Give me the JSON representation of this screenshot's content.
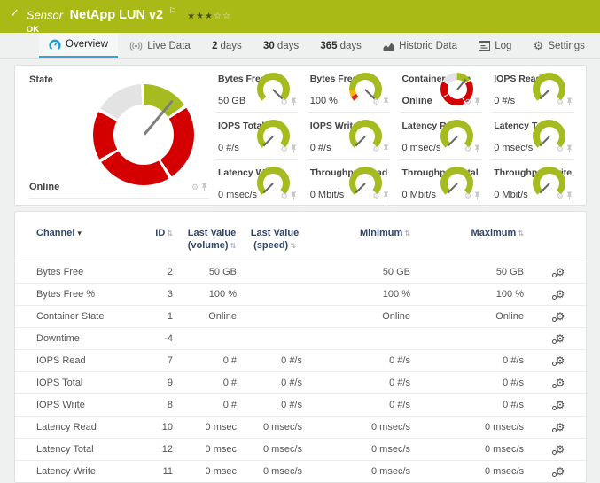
{
  "colors": {
    "banner_green": "#a9ba16",
    "gauge_green": "#a6bb20",
    "gauge_red": "#d40000",
    "gauge_warn_yellow": "#f8b800",
    "gauge_gray": "#e3e3e3",
    "active_tab_blue": "#2ba6d9",
    "table_header_navy": "#33456b"
  },
  "icons": {
    "check": "✓",
    "flag": "⚐",
    "gear": "⚙",
    "sort": "⇅",
    "sort_down": "▾"
  },
  "header": {
    "kind": "Sensor",
    "title": "NetApp LUN v2",
    "status": "OK",
    "stars_filled": "★★★",
    "stars_empty": "☆☆"
  },
  "tabs": [
    {
      "icon": "gauge-icon",
      "label": "Overview",
      "active": true
    },
    {
      "icon": "broadcast-icon",
      "label": "Live Data"
    },
    {
      "num": "2",
      "label": "days"
    },
    {
      "num": "30",
      "label": "days"
    },
    {
      "num": "365",
      "label": "days"
    },
    {
      "icon": "historic-chart-icon",
      "label": "Historic Data"
    },
    {
      "icon": "log-icon",
      "label": "Log"
    },
    {
      "icon": "gear-icon",
      "label": "Settings"
    }
  ],
  "state_gauge": {
    "title": "State",
    "value": "Online"
  },
  "mini_gauges": [
    {
      "label": "Bytes Free",
      "value": "50 GB",
      "style": "green",
      "needle": "max"
    },
    {
      "label": "Bytes Free %",
      "value": "100 %",
      "style": "limits",
      "needle": "max"
    },
    {
      "label": "Container State",
      "value": "Online",
      "style": "state",
      "needle": "state",
      "emph": true
    },
    {
      "label": "IOPS Read",
      "value": "0 #/s",
      "style": "green",
      "needle": "min"
    },
    {
      "label": "IOPS Total",
      "value": "0 #/s",
      "style": "green",
      "needle": "min"
    },
    {
      "label": "IOPS Write",
      "value": "0 #/s",
      "style": "green",
      "needle": "min"
    },
    {
      "label": "Latency Read",
      "value": "0 msec/s",
      "style": "green",
      "needle": "min"
    },
    {
      "label": "Latency Total",
      "value": "0 msec/s",
      "style": "green",
      "needle": "min"
    },
    {
      "label": "Latency Write",
      "value": "0 msec/s",
      "style": "green",
      "needle": "min"
    },
    {
      "label": "Throughput Read",
      "value": "0 Mbit/s",
      "style": "green",
      "needle": "min"
    },
    {
      "label": "Throughput Total",
      "value": "0 Mbit/s",
      "style": "green",
      "needle": "min"
    },
    {
      "label": "Throughput Write",
      "value": "0 Mbit/s",
      "style": "green",
      "needle": "min"
    }
  ],
  "table": {
    "headers": {
      "channel": "Channel",
      "id": "ID",
      "last_value_volume": "Last Value (volume)",
      "last_value_speed": "Last Value (speed)",
      "minimum": "Minimum",
      "maximum": "Maximum"
    },
    "rows": [
      {
        "channel": "Bytes Free",
        "id": "2",
        "vol": "50 GB",
        "speed": "",
        "min": "50 GB",
        "max": "50 GB"
      },
      {
        "channel": "Bytes Free %",
        "id": "3",
        "vol": "100 %",
        "speed": "",
        "min": "100 %",
        "max": "100 %"
      },
      {
        "channel": "Container State",
        "id": "1",
        "vol": "Online",
        "speed": "",
        "min": "Online",
        "max": "Online"
      },
      {
        "channel": "Downtime",
        "id": "-4",
        "vol": "",
        "speed": "",
        "min": "",
        "max": ""
      },
      {
        "channel": "IOPS Read",
        "id": "7",
        "vol": "0 #",
        "speed": "0 #/s",
        "min": "0 #/s",
        "max": "0 #/s"
      },
      {
        "channel": "IOPS Total",
        "id": "9",
        "vol": "0 #",
        "speed": "0 #/s",
        "min": "0 #/s",
        "max": "0 #/s"
      },
      {
        "channel": "IOPS Write",
        "id": "8",
        "vol": "0 #",
        "speed": "0 #/s",
        "min": "0 #/s",
        "max": "0 #/s"
      },
      {
        "channel": "Latency Read",
        "id": "10",
        "vol": "0 msec",
        "speed": "0 msec/s",
        "min": "0 msec/s",
        "max": "0 msec/s"
      },
      {
        "channel": "Latency Total",
        "id": "12",
        "vol": "0 msec",
        "speed": "0 msec/s",
        "min": "0 msec/s",
        "max": "0 msec/s"
      },
      {
        "channel": "Latency Write",
        "id": "11",
        "vol": "0 msec",
        "speed": "0 msec/s",
        "min": "0 msec/s",
        "max": "0 msec/s"
      }
    ]
  }
}
